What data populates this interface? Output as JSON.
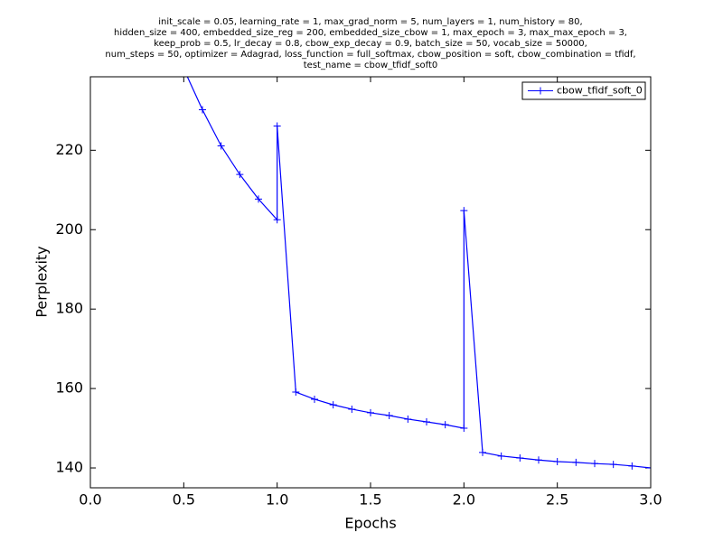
{
  "chart_data": {
    "type": "line",
    "title": [
      "init_scale = 0.05, learning_rate = 1, max_grad_norm = 5, num_layers = 1, num_history = 80,",
      "hidden_size = 400, embedded_size_reg = 200, embedded_size_cbow = 1, max_epoch = 3, max_max_epoch = 3,",
      "keep_prob = 0.5, lr_decay = 0.8, cbow_exp_decay = 0.9, batch_size = 50, vocab_size = 50000,",
      "num_steps = 50, optimizer = Adagrad, loss_function = full_softmax, cbow_position = soft, cbow_combination = tfidf,",
      "test_name = cbow_tfidf_soft0"
    ],
    "x_label": "Epochs",
    "y_label": "Perplexity",
    "x": [
      0.5,
      0.6,
      0.7,
      0.8,
      0.9,
      1.0,
      1.0,
      1.1,
      1.2,
      1.3,
      1.4,
      1.5,
      1.6,
      1.7,
      1.8,
      1.9,
      2.0,
      2.0,
      2.1,
      2.2,
      2.3,
      2.4,
      2.5,
      2.6,
      2.7,
      2.8,
      2.9,
      3.0
    ],
    "series": [
      {
        "name": "cbow_tfidf_soft_0",
        "color": "#0000ff",
        "values": [
          240.5,
          230.2,
          221.1,
          213.9,
          207.7,
          202.5,
          226.1,
          159.1,
          157.3,
          155.9,
          154.8,
          153.9,
          153.2,
          152.3,
          151.6,
          150.9,
          150.0,
          204.8,
          143.9,
          143.0,
          142.5,
          142.0,
          141.6,
          141.4,
          141.1,
          140.9,
          140.5,
          140.0
        ]
      }
    ],
    "xlim": [
      0,
      3
    ],
    "ylim": [
      135,
      238.5
    ],
    "xticks": [
      {
        "value": 0,
        "label": "0.0"
      },
      {
        "value": 0.5,
        "label": "0.5"
      },
      {
        "value": 1,
        "label": "1.0"
      },
      {
        "value": 1.5,
        "label": "1.5"
      },
      {
        "value": 2,
        "label": "2.0"
      },
      {
        "value": 2.5,
        "label": "2.5"
      },
      {
        "value": 3,
        "label": "3.0"
      }
    ],
    "yticks": [
      140,
      160,
      180,
      200,
      220
    ],
    "legend": "upper right",
    "grid": false
  }
}
